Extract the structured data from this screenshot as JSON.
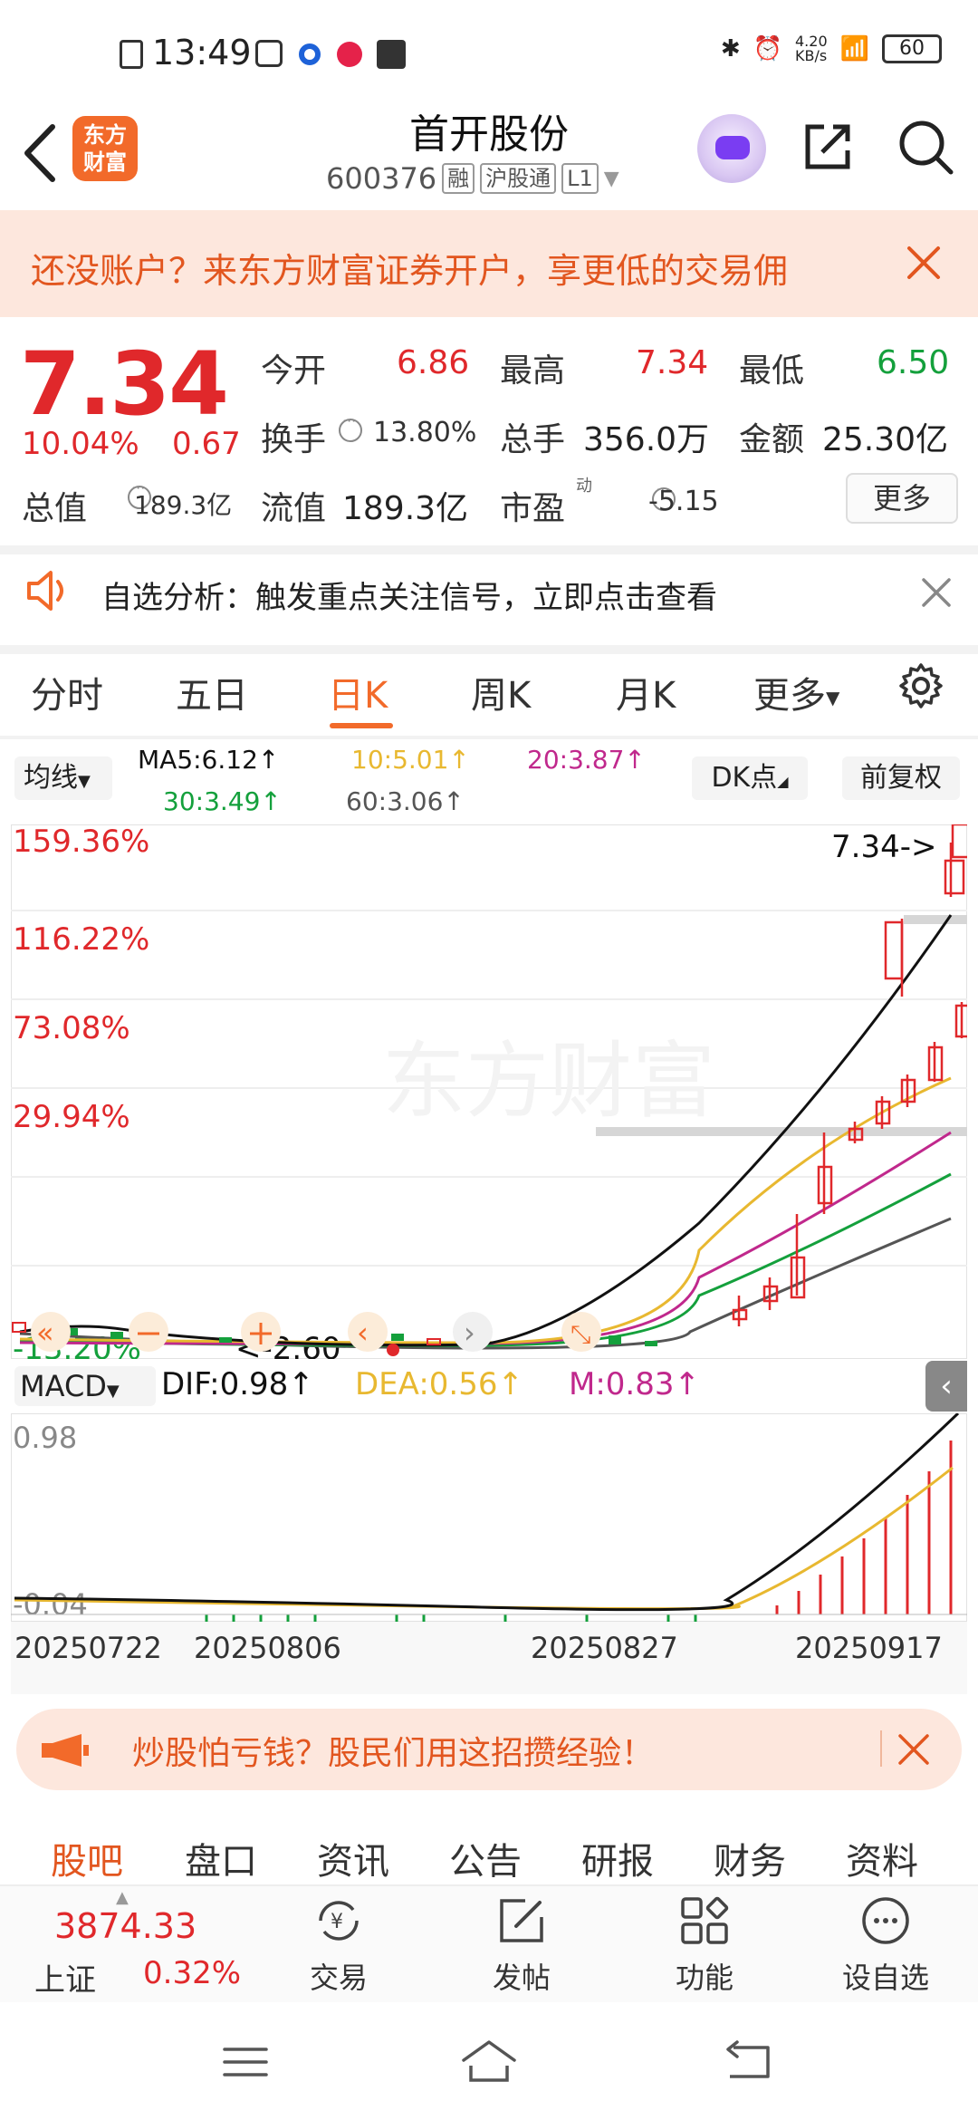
{
  "status_bar": {
    "time": "13:49",
    "net_speed": "4.20\nKB/s",
    "battery": "60"
  },
  "header": {
    "logo": "东方\n财富",
    "stock_name": "首开股份",
    "stock_code": "600376",
    "tags": [
      "融",
      "沪股通",
      "L1"
    ]
  },
  "account_banner": {
    "text": "还没账户？来东方财富证券开户，享更低的交易佣"
  },
  "quote": {
    "price": "7.34",
    "change_pct": "10.04%",
    "change": "0.67",
    "open_label": "今开",
    "open": "6.86",
    "high_label": "最高",
    "high": "7.34",
    "low_label": "最低",
    "low": "6.50",
    "turnover_label": "换手",
    "turnover": "13.80%",
    "volume_label": "总手",
    "volume": "356.0万",
    "amount_label": "金额",
    "amount": "25.30亿",
    "mktcap_label": "总值",
    "mktcap": "189.3亿",
    "float_label": "流值",
    "float": "189.3亿",
    "pe_label": "市盈",
    "pe_sup": "动",
    "pe": "-5.15",
    "more": "更多"
  },
  "analysis": {
    "text": "自选分析：触发重点关注信号，立即点击查看"
  },
  "period_tabs": [
    "分时",
    "五日",
    "日K",
    "周K",
    "月K",
    "更多"
  ],
  "ma_row": {
    "button": "均线",
    "ma5": "MA5:6.12↑",
    "ma10": "10:5.01↑",
    "ma20": "20:3.87↑",
    "ma30": "30:3.49↑",
    "ma60": "60:3.06↑",
    "dk": "DK点",
    "fuquan": "前复权"
  },
  "chart": {
    "y_labels": [
      "159.36%",
      "116.22%",
      "73.08%",
      "29.94%",
      "-13.20%"
    ],
    "last_price_tag": "7.34->",
    "low_tag": "<-2.60",
    "watermark": "东方财富"
  },
  "macd": {
    "button": "MACD",
    "dif": "DIF:0.98↑",
    "dea": "DEA:0.56↑",
    "m": "M:0.83↑",
    "top_label": "0.98",
    "bottom_label": "-0.04"
  },
  "dates": [
    "20250722",
    "20250806",
    "20250827",
    "20250917"
  ],
  "promo": {
    "text": "炒股怕亏钱？股民们用这招攒经验！"
  },
  "bottom_tabs": [
    "股吧",
    "盘口",
    "资讯",
    "公告",
    "研报",
    "财务",
    "资料"
  ],
  "index_bar": {
    "value": "3874.33",
    "name": "上证",
    "pct": "0.32%",
    "nav": [
      "交易",
      "发帖",
      "功能",
      "设自选"
    ]
  },
  "colors": {
    "up": "#e0282b",
    "down": "#14a03c",
    "accent": "#f26a2a",
    "ma5": "#111111",
    "ma10": "#e8b830",
    "ma20": "#c0288c",
    "ma30": "#14a03c",
    "ma60": "#555555"
  }
}
